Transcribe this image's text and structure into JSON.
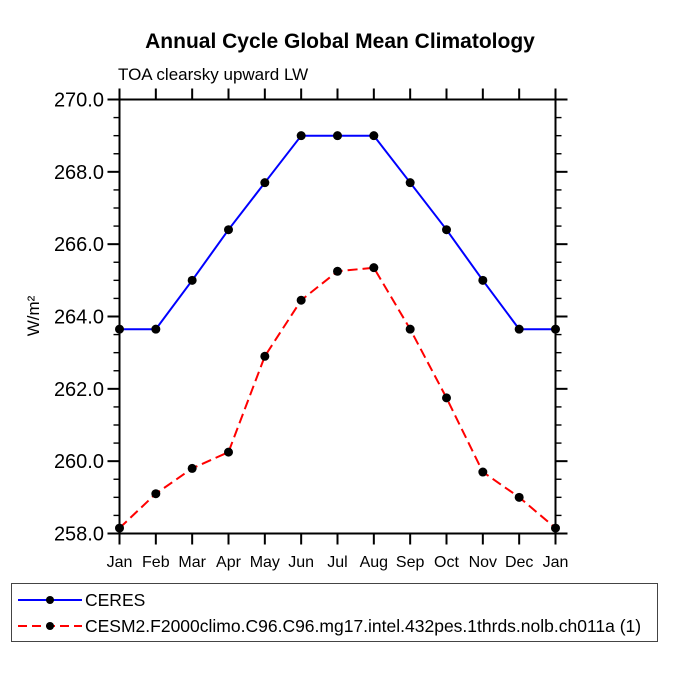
{
  "page": {
    "background": "#ffffff"
  },
  "chart_data": {
    "type": "line",
    "title": "Annual Cycle Global Mean Climatology",
    "subtitle": "TOA clearsky upward LW",
    "ylabel": "W/m²",
    "xlabel": "",
    "categories": [
      "Jan",
      "Feb",
      "Mar",
      "Apr",
      "May",
      "Jun",
      "Jul",
      "Aug",
      "Sep",
      "Oct",
      "Nov",
      "Dec",
      "Jan"
    ],
    "ylim": [
      258.0,
      270.0
    ],
    "ytick_major_interval": 2.0,
    "ytick_minor_interval": 0.5,
    "ytick_labels": [
      "258.0",
      "260.0",
      "262.0",
      "264.0",
      "266.0",
      "268.0",
      "270.0"
    ],
    "grid": false,
    "legend_position": "bottom-left-box",
    "axis_color": "#000000",
    "series": [
      {
        "name": "CERES",
        "line_color": "#0000ff",
        "line_style": "solid",
        "marker": "filled-circle",
        "marker_color": "#000000",
        "values": [
          263.65,
          263.65,
          265.0,
          266.4,
          267.7,
          269.0,
          269.0,
          269.0,
          267.7,
          266.4,
          265.0,
          263.65,
          263.65
        ]
      },
      {
        "name": "CESM2.F2000climo.C96.C96.mg17.intel.432pes.1thrds.nolb.ch011a (1)",
        "line_color": "#ff0000",
        "line_style": "dashed",
        "marker": "filled-circle",
        "marker_color": "#000000",
        "values": [
          258.15,
          259.1,
          259.8,
          260.25,
          262.9,
          264.45,
          265.25,
          265.35,
          263.65,
          261.75,
          259.7,
          259.0,
          258.15
        ]
      }
    ]
  }
}
